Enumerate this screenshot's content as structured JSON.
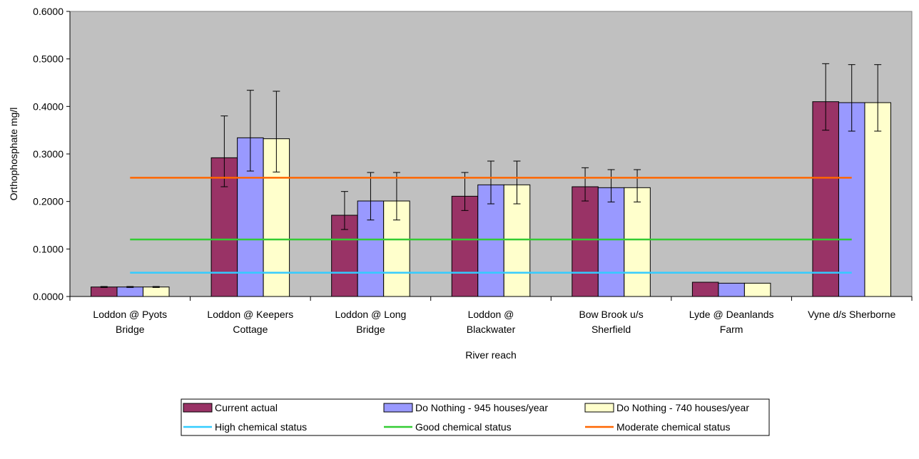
{
  "chart_data": {
    "type": "bar",
    "title": "",
    "xlabel": "River reach",
    "ylabel": "Orthophosphate mg/l",
    "ylim": [
      0,
      0.6
    ],
    "yticks": [
      "0.0000",
      "0.1000",
      "0.2000",
      "0.3000",
      "0.4000",
      "0.5000",
      "0.6000"
    ],
    "grid": false,
    "legend_position": "bottom",
    "plot_background": "#c0c0c0",
    "categories": [
      [
        "Loddon @ Pyots",
        "Bridge"
      ],
      [
        "Loddon @ Keepers",
        "Cottage"
      ],
      [
        "Loddon @ Long",
        "Bridge"
      ],
      [
        "Loddon @",
        "Blackwater"
      ],
      [
        "Bow Brook u/s",
        "Sherfield"
      ],
      [
        "Lyde @ Deanlands",
        "Farm"
      ],
      [
        "Vyne d/s Sherborne"
      ]
    ],
    "series": [
      {
        "name": "Current actual",
        "color": "#993366",
        "values": [
          0.02,
          0.292,
          0.171,
          0.211,
          0.231,
          0.03,
          0.41
        ],
        "err_low": [
          0.019,
          0.231,
          0.141,
          0.181,
          0.201,
          0.03,
          0.35
        ],
        "err_high": [
          0.021,
          0.38,
          0.221,
          0.261,
          0.271,
          0.03,
          0.49
        ]
      },
      {
        "name": "Do Nothing - 945 houses/year",
        "color": "#9999ff",
        "values": [
          0.02,
          0.334,
          0.201,
          0.235,
          0.229,
          0.028,
          0.408
        ],
        "err_low": [
          0.019,
          0.264,
          0.161,
          0.195,
          0.199,
          0.028,
          0.348
        ],
        "err_high": [
          0.021,
          0.434,
          0.261,
          0.285,
          0.267,
          0.028,
          0.488
        ]
      },
      {
        "name": "Do Nothing - 740 houses/year",
        "color": "#ffffcc",
        "values": [
          0.02,
          0.332,
          0.201,
          0.235,
          0.229,
          0.028,
          0.408
        ],
        "err_low": [
          0.019,
          0.262,
          0.161,
          0.195,
          0.199,
          0.028,
          0.348
        ],
        "err_high": [
          0.021,
          0.432,
          0.261,
          0.285,
          0.267,
          0.028,
          0.488
        ]
      }
    ],
    "reference_lines": [
      {
        "name": "High chemical status",
        "value": 0.05,
        "color": "#33ccff"
      },
      {
        "name": "Good chemical status",
        "value": 0.12,
        "color": "#33cc33"
      },
      {
        "name": "Moderate chemical status",
        "value": 0.25,
        "color": "#ff6600"
      }
    ]
  }
}
